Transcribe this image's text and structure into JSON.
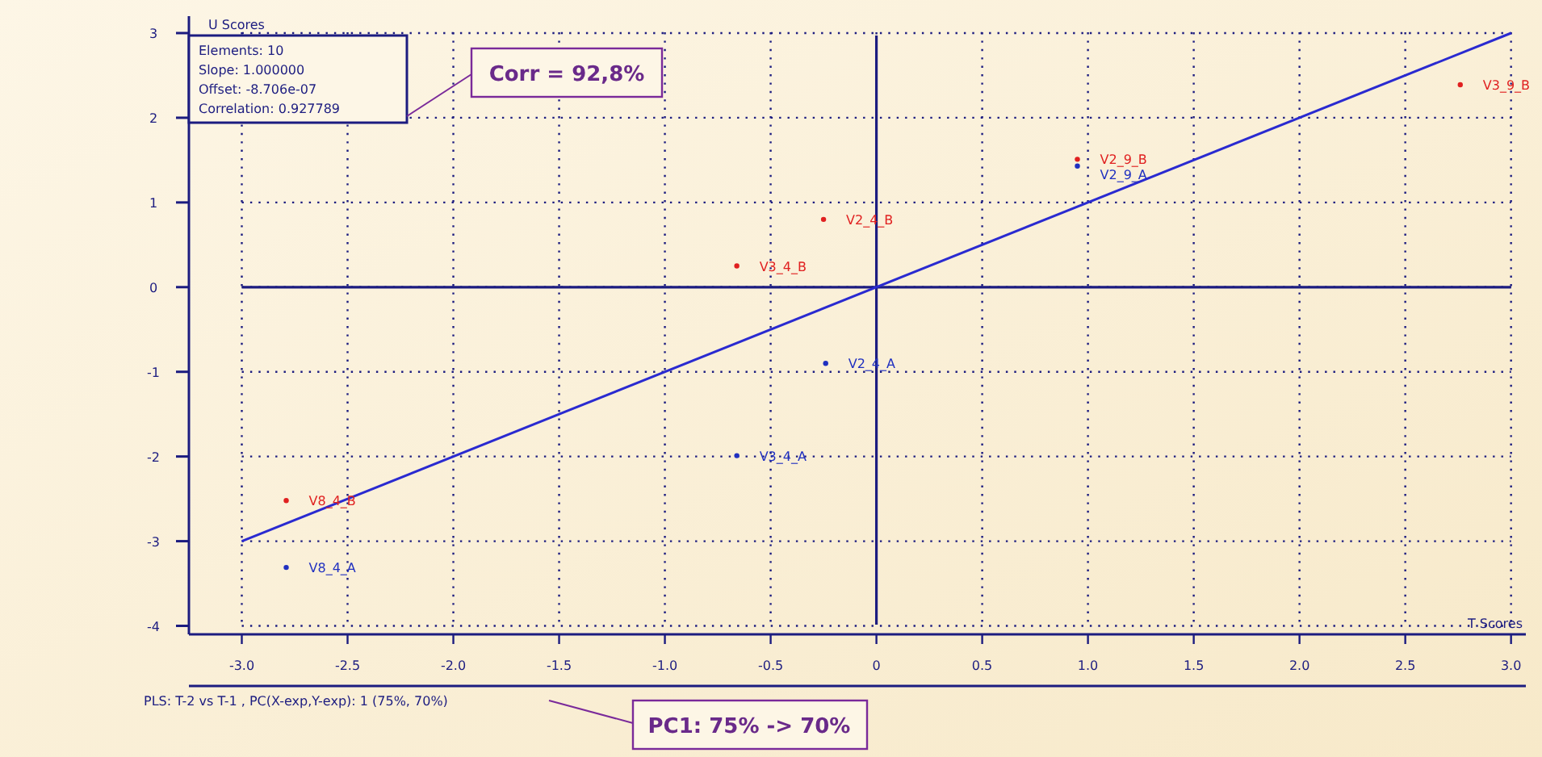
{
  "chart_data": {
    "type": "scatter",
    "xlabel": "T Scores",
    "ylabel": "U Scores",
    "xlim": [
      -3.25,
      3.07
    ],
    "ylim": [
      -4.1,
      3.2
    ],
    "xticks": [
      {
        "value": -3,
        "label": "-3.0"
      },
      {
        "value": -2.5,
        "label": "-2.5"
      },
      {
        "value": -2,
        "label": "-2.0"
      },
      {
        "value": -1.5,
        "label": "-1.5"
      },
      {
        "value": -1,
        "label": "-1.0"
      },
      {
        "value": -0.5,
        "label": "-0.5"
      },
      0,
      {
        "value": 0.5,
        "label": "0.5"
      },
      {
        "value": 1,
        "label": "1.0"
      },
      {
        "value": 1.5,
        "label": "1.5"
      },
      {
        "value": 2,
        "label": "2.0"
      },
      {
        "value": 2.5,
        "label": "2.5"
      },
      {
        "value": 3,
        "label": "3.0"
      }
    ],
    "yticks": [
      -4,
      -3,
      -2,
      -1,
      0,
      1,
      2,
      3
    ],
    "grid": true,
    "marker": "circle",
    "series": [
      {
        "color": "#e02020",
        "x": [
          2.76,
          0.95,
          -0.25,
          -0.66,
          -2.79
        ],
        "values": [
          2.39,
          1.51,
          0.8,
          0.25,
          -2.52
        ]
      },
      {
        "color": "#2030c0",
        "x": [
          0.95,
          -0.24,
          -0.66,
          -2.79
        ],
        "values": [
          1.43,
          -0.9,
          -1.99,
          -3.31
        ]
      },
      {
        "type": "line",
        "color": "#2a2ad0",
        "x": [
          -3,
          3
        ],
        "values": [
          -3,
          3
        ],
        "line_style": "solid",
        "marker": "none"
      }
    ],
    "annotations": [
      {
        "text": "V3_9_B",
        "x": 2.76,
        "y": 2.39
      },
      {
        "text": "V2_9_B",
        "x": 0.95,
        "y": 1.51
      },
      {
        "text": "V2_9_A",
        "x": 0.95,
        "y": 1.43
      },
      {
        "text": "V2_4_B",
        "x": -0.25,
        "y": 0.8
      },
      {
        "text": "V3_4_B",
        "x": -0.66,
        "y": 0.25
      },
      {
        "text": "V2_4_A",
        "x": -0.24,
        "y": -0.9
      },
      {
        "text": "V3_4_A",
        "x": -0.66,
        "y": -1.99
      },
      {
        "text": "V8_4_B",
        "x": -2.79,
        "y": -2.52
      },
      {
        "text": "V8_4_A",
        "x": -2.79,
        "y": -3.31
      },
      "Elements: 10",
      "Slope: 1.000000",
      "Offset: -8.706e-07",
      "Correlation: 0.927789",
      "Corr = 92,8%",
      "PLS: T-2 vs T-1 , PC(X-exp,Y-exp): 1 (75%, 70%)",
      "PC1: 75% -> 70%"
    ]
  }
}
